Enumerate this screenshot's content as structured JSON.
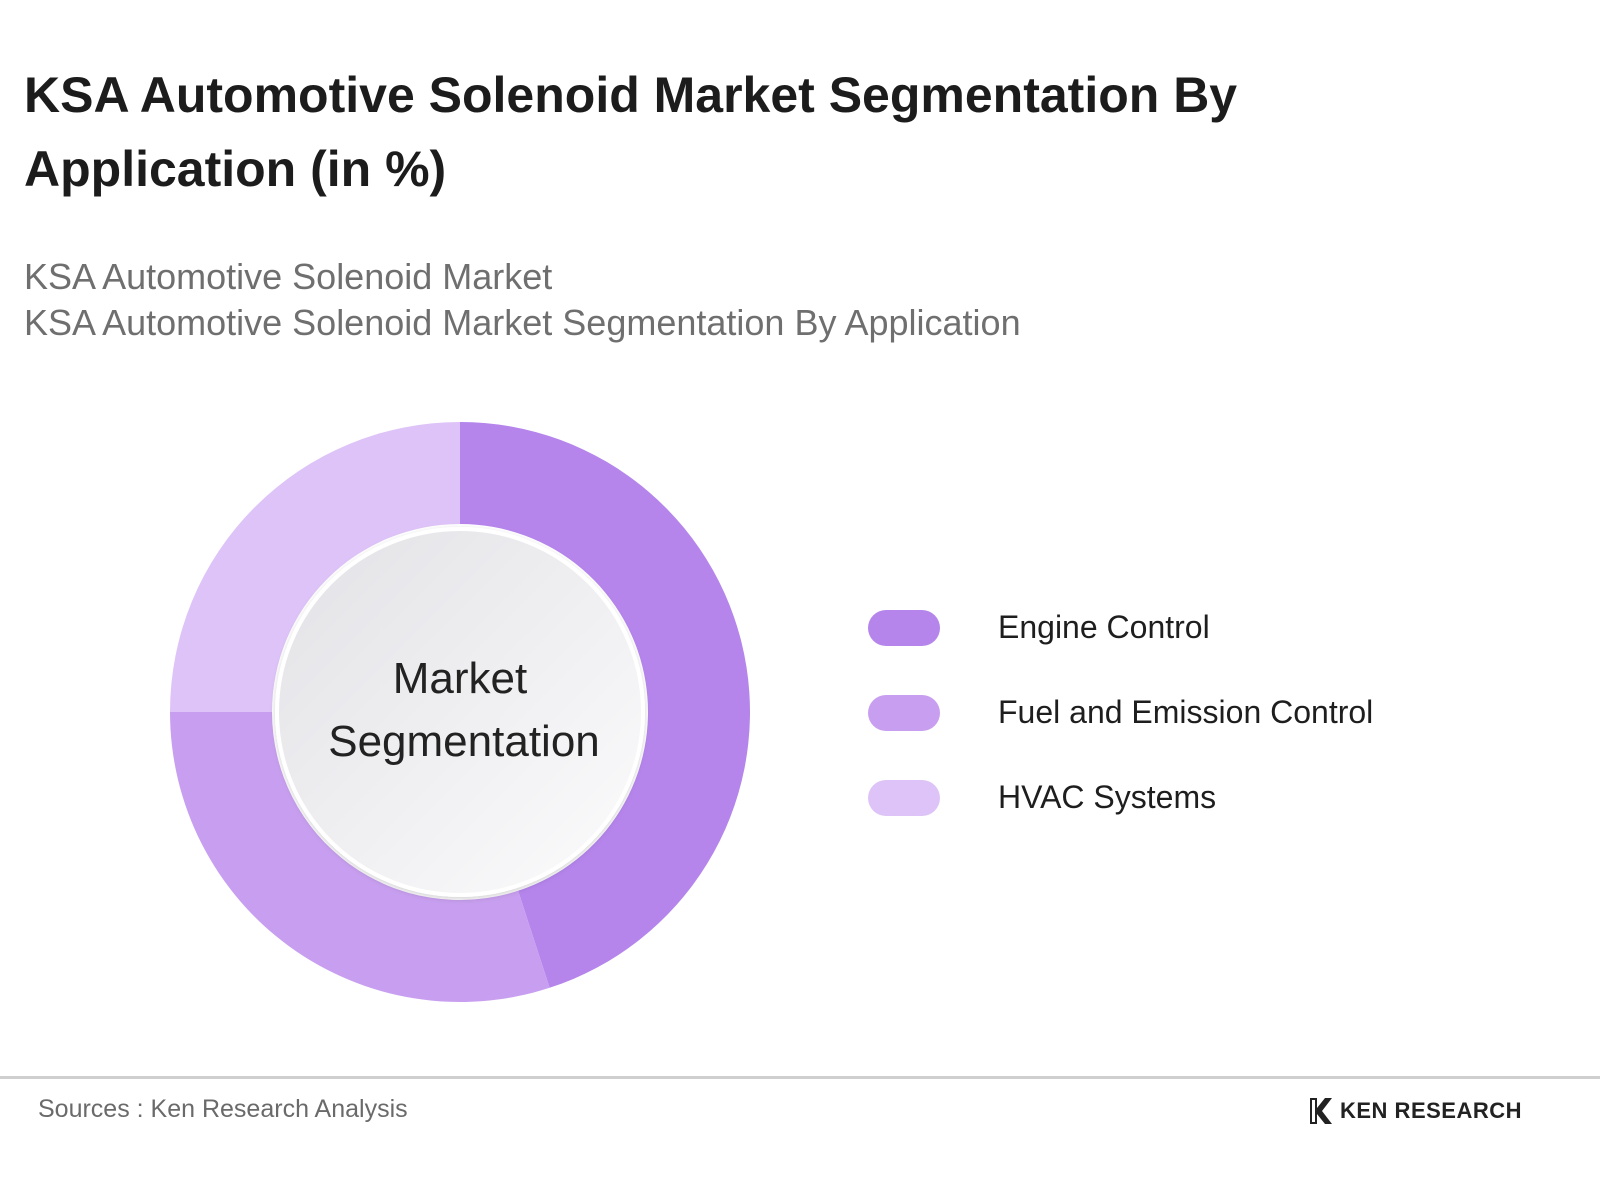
{
  "title": "KSA Automotive Solenoid Market Segmentation By Application (in %)",
  "subtitle_lines": [
    "KSA Automotive Solenoid Market",
    "KSA Automotive Solenoid Market Segmentation By Application"
  ],
  "center_label": [
    "Market",
    "Segmentation"
  ],
  "chart_data": {
    "type": "pie",
    "variant": "donut",
    "categories": [
      "Engine Control",
      "Fuel and Emission Control",
      "HVAC Systems"
    ],
    "values": [
      45,
      30,
      25
    ],
    "colors": [
      "#b585ec",
      "#c89ff0",
      "#ddc3f7"
    ],
    "legend_position": "right"
  },
  "footer": {
    "source": "Sources : Ken Research Analysis",
    "brand": "KEN RESEARCH"
  }
}
